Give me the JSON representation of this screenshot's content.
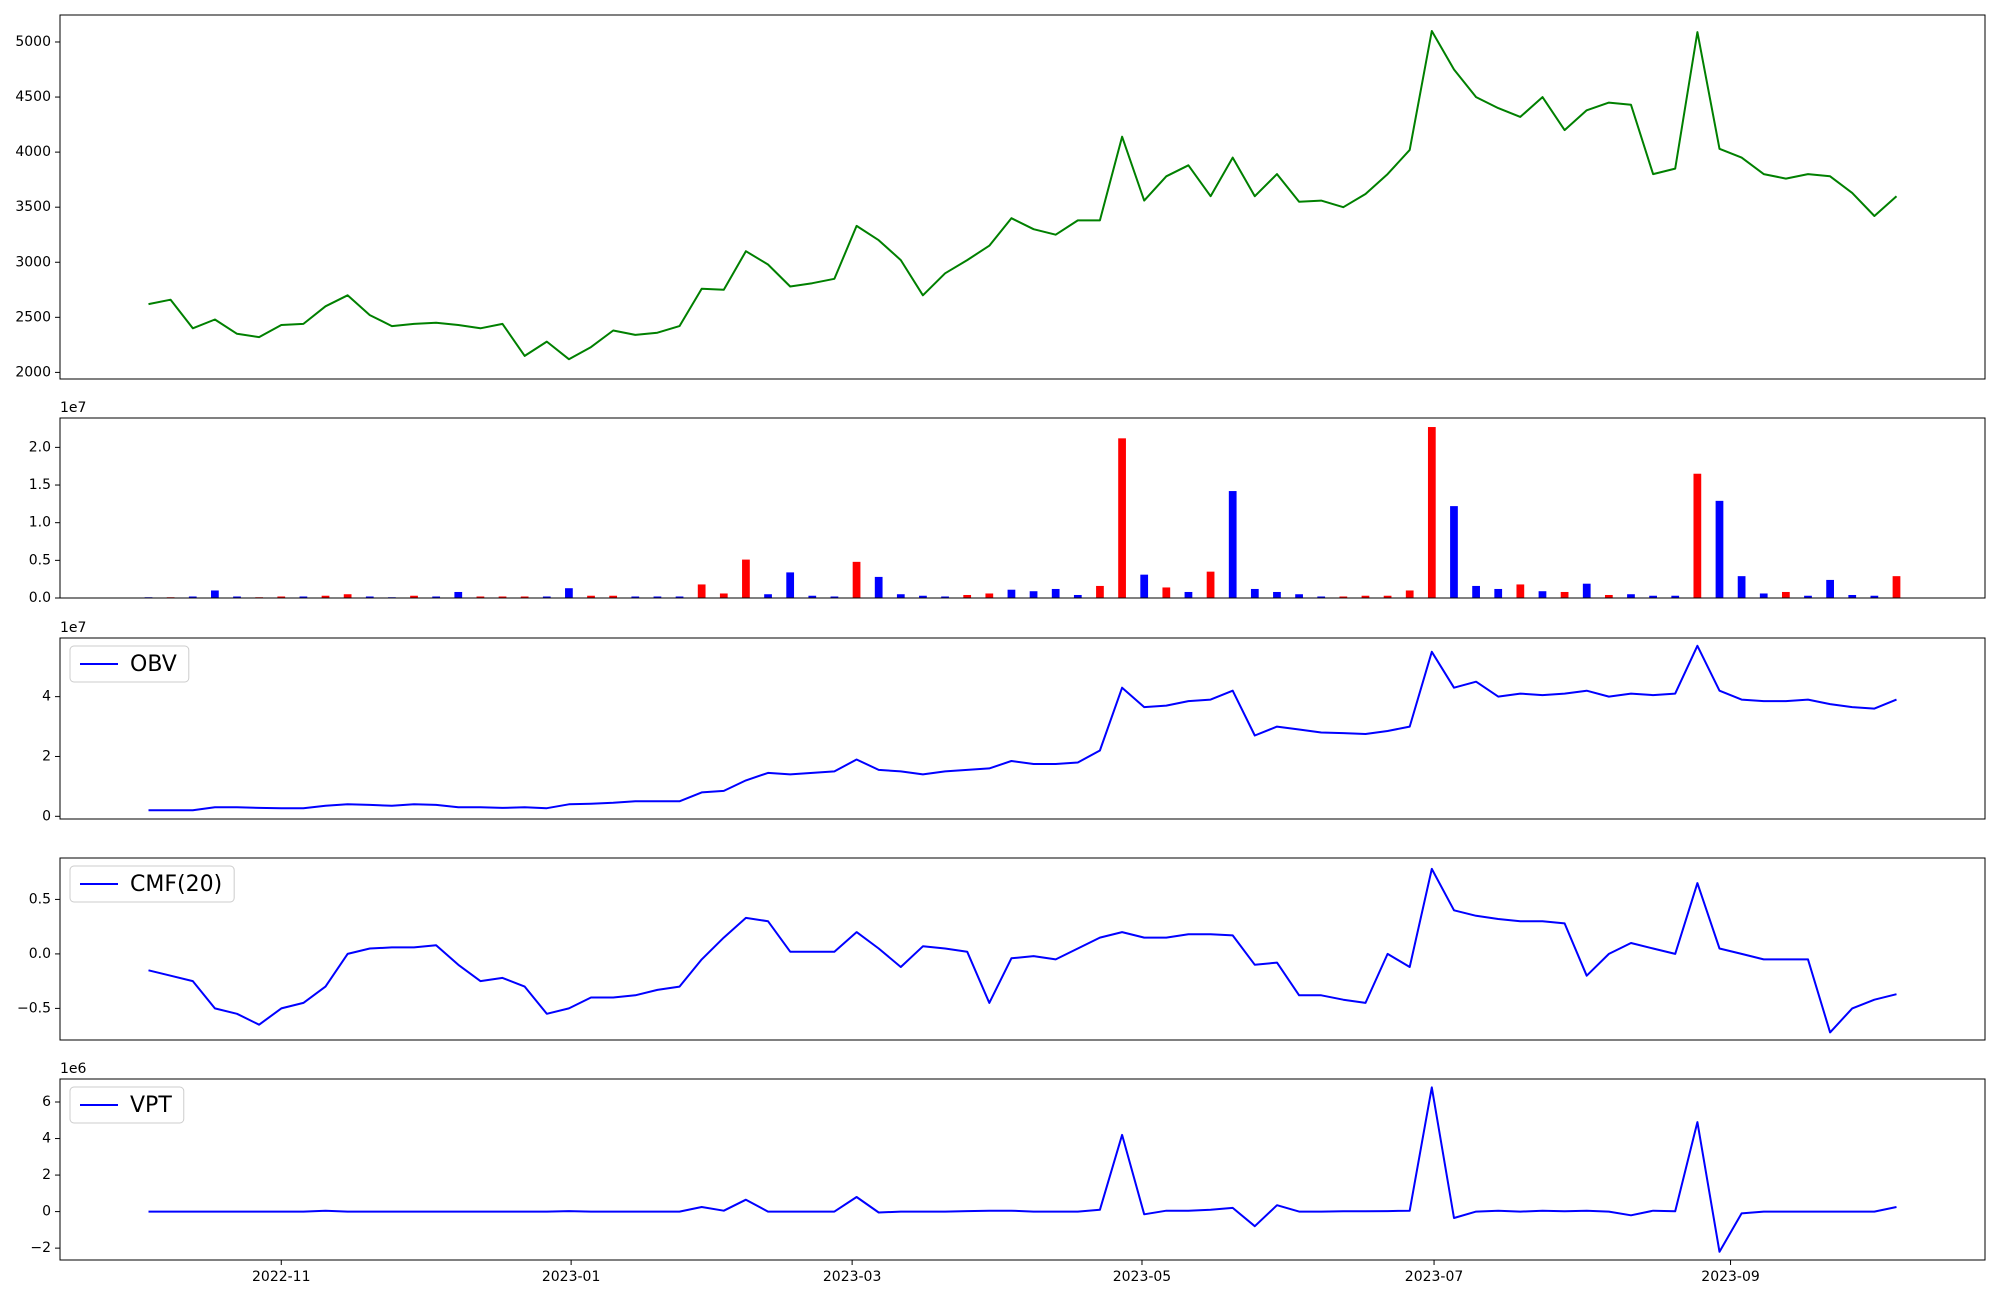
{
  "chart_data": [
    {
      "type": "line",
      "color": "green",
      "values": [
        2620,
        2660,
        2400,
        2480,
        2350,
        2320,
        2430,
        2440,
        2600,
        2700,
        2520,
        2420,
        2440,
        2450,
        2430,
        2400,
        2440,
        2150,
        2280,
        2120,
        2230,
        2380,
        2340,
        2360,
        2420,
        2760,
        2750,
        3100,
        2980,
        2780,
        2810,
        2850,
        3330,
        3200,
        3020,
        2700,
        2900,
        3020,
        3150,
        3400,
        3300,
        3250,
        3380,
        3380,
        4140,
        3560,
        3780,
        3880,
        3600,
        3950,
        3600,
        3800,
        3550,
        3560,
        3500,
        3620,
        3800,
        4020,
        5100,
        4750,
        4500,
        4400,
        4320,
        4500,
        4200,
        4380,
        4450,
        4430,
        3800,
        3850,
        5090,
        4030,
        3950,
        3800,
        3760,
        3800,
        3780,
        3630,
        3420,
        3600
      ],
      "xlim": [
        -4,
        83
      ],
      "ylim": [
        1940,
        5245
      ],
      "yticks": [
        2000,
        2500,
        3000,
        3500,
        4000,
        4500,
        5000
      ]
    },
    {
      "type": "bar",
      "offset_label": "1e7",
      "values": [
        100000,
        100000,
        200000,
        1000000,
        200000,
        100000,
        200000,
        200000,
        300000,
        500000,
        200000,
        100000,
        300000,
        200000,
        800000,
        200000,
        200000,
        200000,
        200000,
        1300000,
        300000,
        300000,
        200000,
        200000,
        200000,
        1800000,
        600000,
        5100000,
        500000,
        3400000,
        300000,
        200000,
        4800000,
        2800000,
        500000,
        300000,
        200000,
        400000,
        600000,
        1100000,
        900000,
        1200000,
        400000,
        1600000,
        21200000,
        3100000,
        1400000,
        800000,
        3500000,
        14200000,
        1200000,
        800000,
        500000,
        200000,
        200000,
        300000,
        300000,
        1000000,
        22700000,
        12200000,
        1600000,
        1200000,
        1800000,
        900000,
        800000,
        1900000,
        400000,
        500000,
        300000,
        300000,
        16500000,
        12900000,
        2900000,
        600000,
        800000,
        300000,
        2400000,
        400000,
        300000,
        2900000
      ],
      "colors": [
        "blue",
        "red",
        "blue",
        "blue",
        "blue",
        "red",
        "red",
        "blue",
        "red",
        "red",
        "blue",
        "blue",
        "red",
        "blue",
        "blue",
        "red",
        "red",
        "red",
        "blue",
        "blue",
        "red",
        "red",
        "blue",
        "blue",
        "blue",
        "red",
        "red",
        "red",
        "blue",
        "blue",
        "blue",
        "blue",
        "red",
        "blue",
        "blue",
        "blue",
        "blue",
        "red",
        "red",
        "blue",
        "blue",
        "blue",
        "blue",
        "red",
        "red",
        "blue",
        "red",
        "blue",
        "red",
        "blue",
        "blue",
        "blue",
        "blue",
        "blue",
        "red",
        "red",
        "red",
        "red",
        "red",
        "blue",
        "blue",
        "blue",
        "red",
        "blue",
        "red",
        "blue",
        "red",
        "blue",
        "blue",
        "blue",
        "red",
        "blue",
        "blue",
        "blue",
        "red",
        "blue",
        "blue",
        "blue",
        "blue",
        "red"
      ],
      "xlim": [
        -4,
        83
      ],
      "ylim": [
        0,
        23900000
      ],
      "yticks": [
        {
          "value": 0,
          "label": "0.0"
        },
        {
          "value": 5000000,
          "label": "0.5"
        },
        {
          "value": 10000000,
          "label": "1.0"
        },
        {
          "value": 15000000,
          "label": "1.5"
        },
        {
          "value": 20000000,
          "label": "2.0"
        }
      ]
    },
    {
      "type": "line",
      "offset_label": "1e7",
      "legend": "upper left",
      "series": [
        {
          "name": "OBV",
          "color": "blue",
          "values": [
            2000000,
            2000000,
            2000000,
            3000000,
            3000000,
            2800000,
            2700000,
            2700000,
            3500000,
            4000000,
            3800000,
            3500000,
            4000000,
            3800000,
            3000000,
            3000000,
            2800000,
            3000000,
            2700000,
            4000000,
            4200000,
            4500000,
            5000000,
            5000000,
            5000000,
            8000000,
            8500000,
            12000000,
            14500000,
            14000000,
            14500000,
            15000000,
            19000000,
            15500000,
            15000000,
            14000000,
            15000000,
            15500000,
            16000000,
            18500000,
            17500000,
            17500000,
            18000000,
            22000000,
            43000000,
            36500000,
            37000000,
            38500000,
            39000000,
            42000000,
            27000000,
            30000000,
            29000000,
            28000000,
            27800000,
            27500000,
            28500000,
            30000000,
            55000000,
            43000000,
            45000000,
            40000000,
            41000000,
            40500000,
            41000000,
            42000000,
            40000000,
            41000000,
            40500000,
            41000000,
            57000000,
            42000000,
            39000000,
            38500000,
            38500000,
            39000000,
            37500000,
            36500000,
            36000000,
            39000000
          ]
        }
      ],
      "xlim": [
        -4,
        83
      ],
      "ylim": [
        -900000,
        59600000
      ],
      "yticks": [
        {
          "value": 0,
          "label": "0"
        },
        {
          "value": 20000000,
          "label": "2"
        },
        {
          "value": 40000000,
          "label": "4"
        }
      ]
    },
    {
      "type": "line",
      "legend": "upper left",
      "series": [
        {
          "name": "CMF(20)",
          "color": "blue",
          "values": [
            -0.15,
            -0.2,
            -0.25,
            -0.5,
            -0.55,
            -0.65,
            -0.5,
            -0.45,
            -0.3,
            0.0,
            0.05,
            0.06,
            0.06,
            0.08,
            -0.1,
            -0.25,
            -0.22,
            -0.3,
            -0.55,
            -0.5,
            -0.4,
            -0.4,
            -0.38,
            -0.33,
            -0.3,
            -0.05,
            0.15,
            0.33,
            0.3,
            0.02,
            0.02,
            0.02,
            0.2,
            0.05,
            -0.12,
            0.07,
            0.05,
            0.02,
            -0.45,
            -0.04,
            -0.02,
            -0.05,
            0.05,
            0.15,
            0.2,
            0.15,
            0.15,
            0.18,
            0.18,
            0.17,
            -0.1,
            -0.08,
            -0.38,
            -0.38,
            -0.42,
            -0.45,
            0.0,
            -0.12,
            0.78,
            0.4,
            0.35,
            0.32,
            0.3,
            0.3,
            0.28,
            -0.2,
            0.0,
            0.1,
            0.05,
            0.0,
            0.65,
            0.05,
            0.0,
            -0.05,
            -0.05,
            -0.05,
            -0.72,
            -0.5,
            -0.42,
            -0.37
          ]
        }
      ],
      "xlim": [
        -4,
        83
      ],
      "ylim": [
        -0.79,
        0.88
      ],
      "yticks": [
        {
          "value": -0.5,
          "label": "−0.5"
        },
        {
          "value": 0,
          "label": "0.0"
        },
        {
          "value": 0.5,
          "label": "0.5"
        }
      ]
    },
    {
      "type": "line",
      "offset_label": "1e6",
      "legend": "upper left",
      "series": [
        {
          "name": "VPT",
          "color": "blue",
          "values": [
            0,
            0,
            0,
            0,
            0,
            0,
            0,
            0,
            50000,
            0,
            0,
            0,
            0,
            0,
            0,
            0,
            0,
            0,
            0,
            30000,
            0,
            0,
            0,
            0,
            0,
            250000,
            50000,
            650000,
            0,
            0,
            0,
            0,
            800000,
            -50000,
            0,
            0,
            0,
            30000,
            50000,
            50000,
            0,
            0,
            0,
            100000,
            4200000,
            -150000,
            50000,
            50000,
            100000,
            200000,
            -800000,
            350000,
            0,
            0,
            20000,
            20000,
            30000,
            50000,
            6800000,
            -350000,
            0,
            50000,
            0,
            50000,
            20000,
            50000,
            0,
            -200000,
            50000,
            20000,
            4900000,
            -2200000,
            -100000,
            0,
            0,
            0,
            0,
            0,
            0,
            250000
          ]
        }
      ],
      "xlim": [
        -4,
        83
      ],
      "ylim": [
        -2650000,
        7260000
      ],
      "yticks": [
        {
          "value": -2000000,
          "label": "−2"
        },
        {
          "value": 0,
          "label": "0"
        },
        {
          "value": 2000000,
          "label": "2"
        },
        {
          "value": 4000000,
          "label": "4"
        },
        {
          "value": 6000000,
          "label": "6"
        }
      ],
      "xticks": [
        {
          "value": 6.0,
          "label": "2022-11"
        },
        {
          "value": 19.1,
          "label": "2023-01"
        },
        {
          "value": 31.8,
          "label": "2023-03"
        },
        {
          "value": 44.9,
          "label": "2023-05"
        },
        {
          "value": 58.1,
          "label": "2023-07"
        },
        {
          "value": 71.5,
          "label": "2023-09"
        }
      ]
    }
  ]
}
